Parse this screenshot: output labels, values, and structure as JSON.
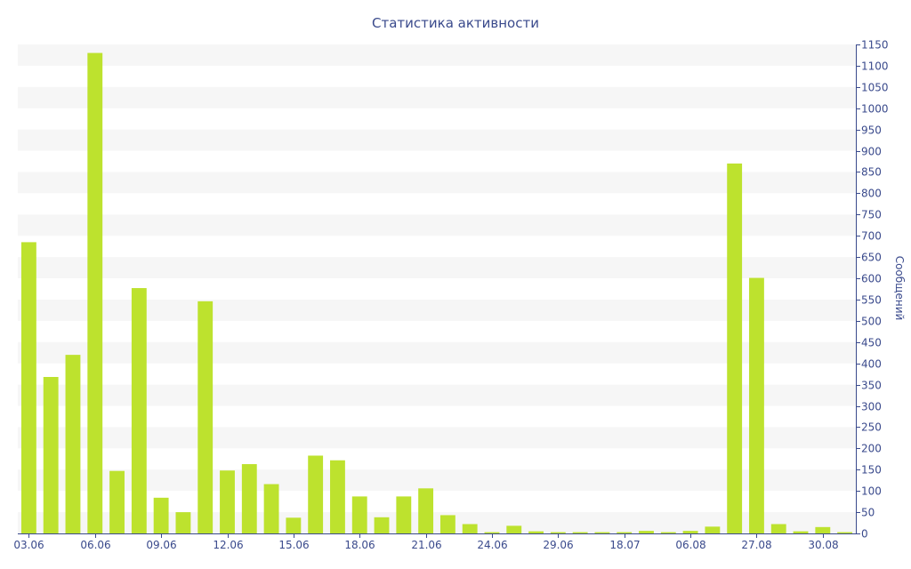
{
  "chart_data": {
    "type": "bar",
    "title": "Статистика активности",
    "xlabel": "",
    "ylabel": "Сообщений",
    "ylim": [
      0,
      1150
    ],
    "ytick_step": 50,
    "yaxis_position": "right",
    "grid": "alternating horizontal bands",
    "legend": "none",
    "colors": {
      "bar": "#bde22e",
      "text": "#3a4a8c",
      "band": "#f6f6f6"
    },
    "x_tick_labels": [
      {
        "index": 0,
        "label": "03.06"
      },
      {
        "index": 3,
        "label": "06.06"
      },
      {
        "index": 6,
        "label": "09.06"
      },
      {
        "index": 9,
        "label": "12.06"
      },
      {
        "index": 12,
        "label": "15.06"
      },
      {
        "index": 15,
        "label": "18.06"
      },
      {
        "index": 18,
        "label": "21.06"
      },
      {
        "index": 21,
        "label": "24.06"
      },
      {
        "index": 24,
        "label": "29.06"
      },
      {
        "index": 27,
        "label": "18.07"
      },
      {
        "index": 30,
        "label": "06.08"
      },
      {
        "index": 33,
        "label": "27.08"
      },
      {
        "index": 36,
        "label": "30.08"
      }
    ],
    "values": [
      685,
      368,
      420,
      1130,
      147,
      577,
      84,
      50,
      546,
      148,
      163,
      116,
      37,
      183,
      172,
      87,
      38,
      87,
      106,
      43,
      22,
      3,
      18,
      5,
      3,
      3,
      3,
      3,
      6,
      3,
      6,
      16,
      870,
      601,
      22,
      5,
      15,
      3
    ]
  }
}
